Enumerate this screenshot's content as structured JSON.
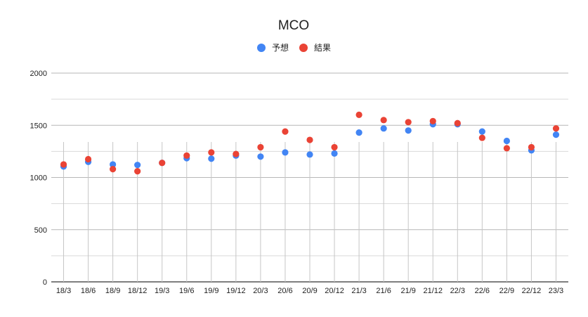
{
  "chart_data": {
    "type": "scatter",
    "title": "MCO",
    "xlabel": "",
    "ylabel": "",
    "ylim": [
      0,
      2000
    ],
    "yticks": [
      0,
      500,
      1000,
      1500,
      2000
    ],
    "grid": true,
    "legend_position": "top",
    "categories": [
      "18/3",
      "18/6",
      "18/9",
      "18/12",
      "19/3",
      "19/6",
      "19/9",
      "19/12",
      "20/3",
      "20/6",
      "20/9",
      "20/12",
      "21/3",
      "21/6",
      "21/9",
      "21/12",
      "22/3",
      "22/6",
      "22/9",
      "22/12",
      "23/3"
    ],
    "series": [
      {
        "name": "予想",
        "color": "#4285f4",
        "values": [
          1105,
          1150,
          1125,
          1120,
          1140,
          1185,
          1180,
          1210,
          1200,
          1240,
          1220,
          1230,
          1430,
          1470,
          1450,
          1510,
          1510,
          1440,
          1350,
          1260,
          1410
        ]
      },
      {
        "name": "結果",
        "color": "#ea4335",
        "values": [
          1125,
          1175,
          1080,
          1060,
          1140,
          1210,
          1240,
          1225,
          1290,
          1440,
          1360,
          1290,
          1600,
          1550,
          1530,
          1540,
          1520,
          1380,
          1280,
          1290,
          1470
        ]
      }
    ]
  }
}
